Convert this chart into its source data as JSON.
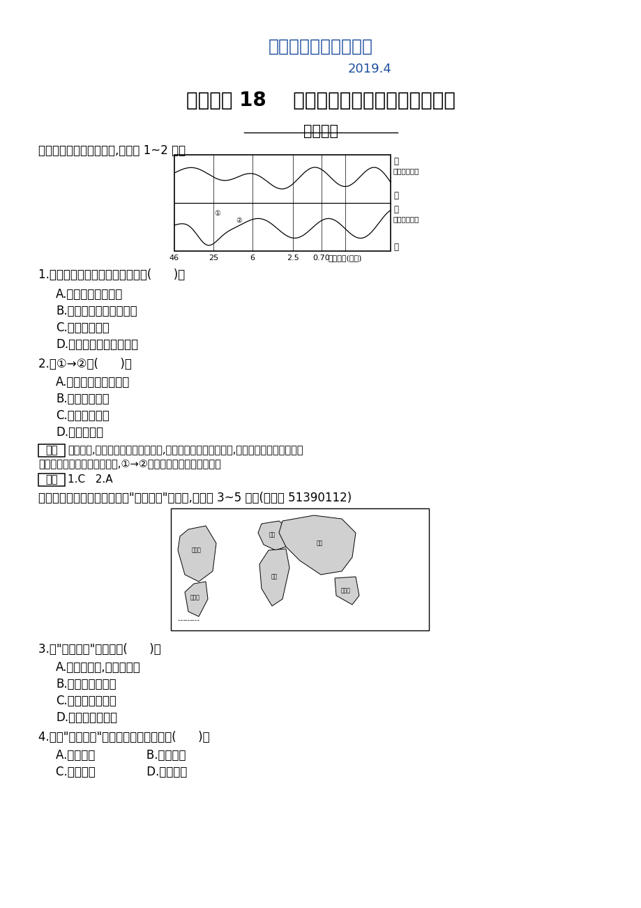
{
  "title_blue": "最新地理精品教学资料",
  "date_blue": "2019.4",
  "main_title": "课时训练 18    全球气候变化对人类活动的影响",
  "section_title": "基础夯实",
  "intro_text": "读全球气候的长期演变图,完成第 1~2 题。",
  "q1_text": "1.全球气候变化状况的基本特点是(      )。",
  "q1_a": "A.全球气温逐渐升高",
  "q1_b": "B.降水量总的趋势在增加",
  "q1_c": "C.冷暖干湿交替",
  "q1_d": "D.气候变化周期长短一致",
  "q2_text": "2.由①→②时(      )。",
  "q2_a": "A.气候由暖湿转为干冷",
  "q2_b": "B.冰川面积减小",
  "q2_c": "C.雪线高度不变",
  "q2_d": "D.海平面上升",
  "analysis_label": "解析",
  "analysis_line1": "由图可知,全球气温呈冷暖交替变化,全球降水呈干湿交替变化,且气温、降水的变化周期",
  "analysis_line2": "都长短不一。从图中可以看出,①→②时段气温下降、降水减少。",
  "answer_label": "答案",
  "answer_text": "1.C   2.A",
  "intro2_text": "图中示意全球可能发生的某种\"环境变迁\"。读图,完成第 3~5 题。(导学号 51390112)",
  "q3_text": "3.该\"环境变迁\"最可能是(      )。",
  "q3_a": "A.海平面上升,低地被淹没",
  "q3_b": "B.火山、地震频发",
  "q3_c": "C.荒漠化日趋严重",
  "q3_d": "D.臭氧层空洞扩大",
  "q4_text": "4.图示\"环境变迁\"可能发生的根本原因是(      )。",
  "q4_ab": "A.冰川融化              B.全球变暖",
  "q4_cd": "C.海水膨胀              D.地面沉降",
  "background_color": "#ffffff",
  "text_color": "#000000",
  "blue_color": "#1f4e9e"
}
